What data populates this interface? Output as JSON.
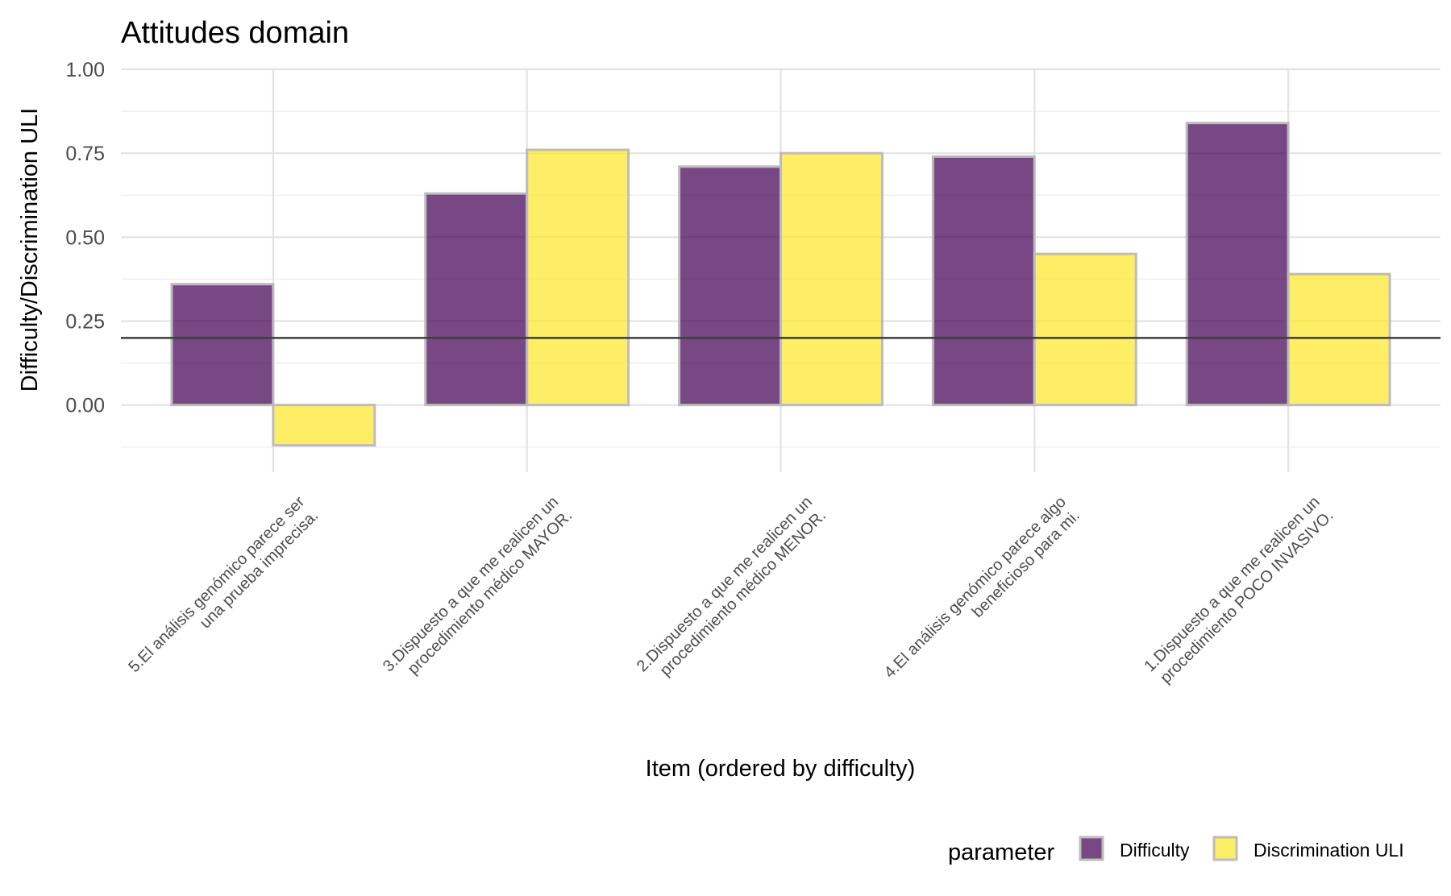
{
  "chart_data": {
    "type": "bar",
    "title": "Attitudes domain",
    "xlabel": "Item (ordered by difficulty)",
    "ylabel": "Difficulty/Discrimination ULI",
    "ylim": [
      -0.12,
      1.0
    ],
    "yticks": [
      0.0,
      0.25,
      0.5,
      0.75,
      1.0
    ],
    "ytick_labels": [
      "0.00",
      "0.25",
      "0.50",
      "0.75",
      "1.00"
    ],
    "categories": [
      [
        "5.El análisis genómico parece ser",
        "una prueba imprecisa."
      ],
      [
        "3.Dispuesto a que me realicen un",
        "procedimiento médico MAYOR."
      ],
      [
        "2.Dispuesto a que me realicen un",
        "procedimiento médico MENOR."
      ],
      [
        "4.El análisis genómico parece algo",
        "beneficioso para mi."
      ],
      [
        "1.Dispuesto a que me realicen un",
        "procedimiento POCO INVASIVO."
      ]
    ],
    "series": [
      {
        "name": "Difficulty",
        "color": "#440154",
        "values": [
          0.36,
          0.63,
          0.71,
          0.74,
          0.84
        ]
      },
      {
        "name": "Discrimination ULI",
        "color": "#FDE725",
        "values": [
          -0.12,
          0.76,
          0.75,
          0.45,
          0.39
        ]
      }
    ],
    "reference_line": 0.2,
    "grid": true,
    "legend": {
      "title": "parameter",
      "placement": "bottom-right"
    }
  }
}
